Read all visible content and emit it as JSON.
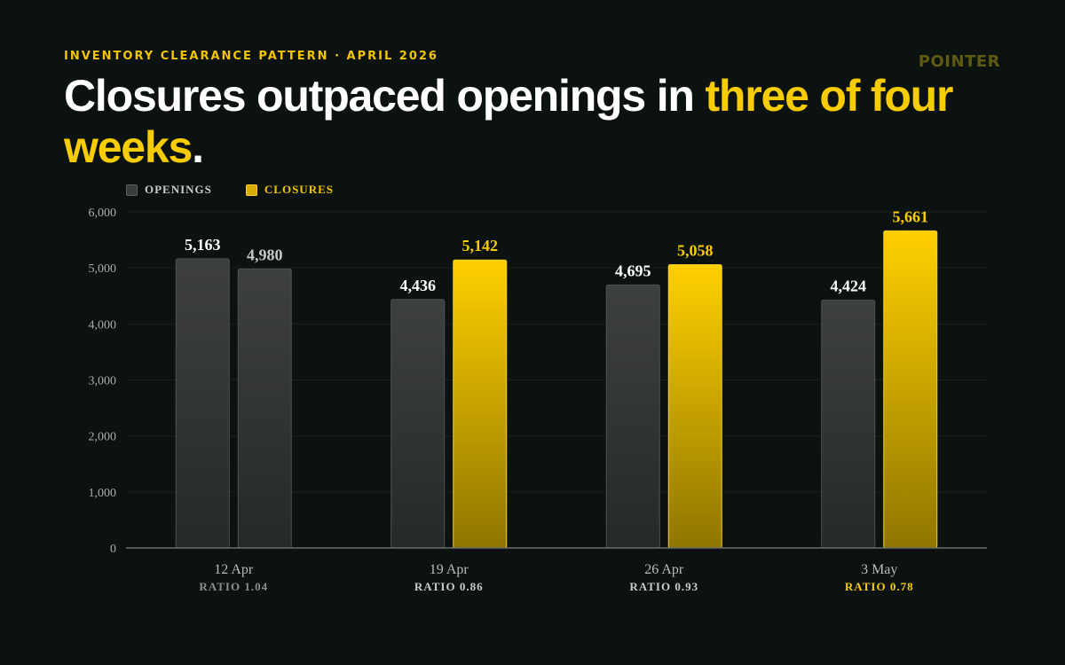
{
  "header": {
    "eyebrow": "INVENTORY CLEARANCE PATTERN · APRIL 2026",
    "brand": "POINTER",
    "headline_lead": "Closures outpaced openings in ",
    "headline_highlight": "three of four weeks",
    "headline_tail": "."
  },
  "legend": {
    "openings": "OPENINGS",
    "closures": "CLOSURES"
  },
  "colors": {
    "background": "#0c120f",
    "accent": "#f7cc00",
    "openings_bar": "#3a3d3b",
    "closures_bar_top": "#ffd000",
    "closures_bar_bottom": "#8f7600",
    "gridline": "#1a201d",
    "axis": "#6a6e6c"
  },
  "chart_data": {
    "type": "bar",
    "categories": [
      "12 Apr",
      "19 Apr",
      "26 Apr",
      "3 May"
    ],
    "sublabels": [
      "RATIO 1.04",
      "RATIO 0.86",
      "RATIO 0.93",
      "RATIO 0.78"
    ],
    "highlighted_sublabel_index": 3,
    "series": [
      {
        "name": "OPENINGS",
        "values": [
          5163,
          4436,
          4695,
          4424
        ]
      },
      {
        "name": "CLOSURES",
        "values": [
          4980,
          5142,
          5058,
          5661
        ]
      }
    ],
    "value_labels": [
      [
        "5,163",
        "4,436",
        "4,695",
        "4,424"
      ],
      [
        "4,980",
        "5,142",
        "5,058",
        "5,661"
      ]
    ],
    "muted_closure_indices": [
      0
    ],
    "ylim": [
      0,
      6000
    ],
    "yticks": [
      0,
      1000,
      2000,
      3000,
      4000,
      5000,
      6000
    ],
    "ytick_labels": [
      "0",
      "1,000",
      "2,000",
      "3,000",
      "4,000",
      "5,000",
      "6,000"
    ],
    "grid": true,
    "legend_position": "top-left",
    "xlabel": "",
    "ylabel": ""
  }
}
